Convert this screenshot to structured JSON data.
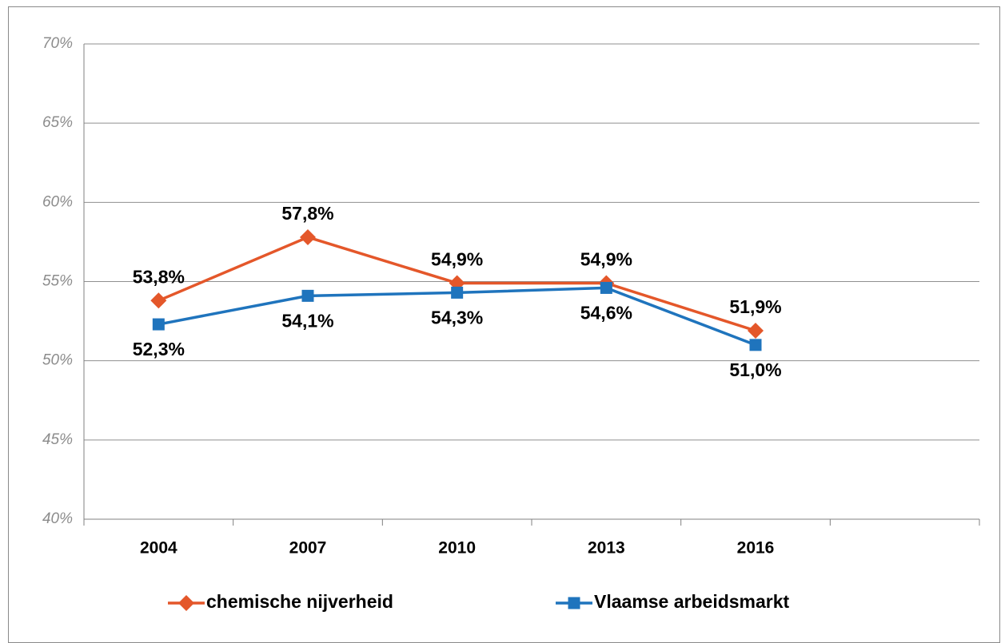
{
  "chart_data": {
    "type": "line",
    "categories": [
      "2004",
      "2007",
      "2010",
      "2013",
      "2016",
      null
    ],
    "series": [
      {
        "name": "chemische nijverheid",
        "color": "#e4572a",
        "marker": "diamond",
        "values": [
          53.8,
          57.8,
          54.9,
          54.9,
          51.9,
          null
        ],
        "value_labels": [
          "53,8%",
          "57,8%",
          "54,9%",
          "54,9%",
          "51,9%",
          null
        ]
      },
      {
        "name": "Vlaamse arbeidsmarkt",
        "color": "#1f74bd",
        "marker": "square",
        "values": [
          52.3,
          54.1,
          54.3,
          54.6,
          51.0,
          null
        ],
        "value_labels": [
          "52,3%",
          "54,1%",
          "54,3%",
          "54,6%",
          "51,0%",
          null
        ]
      }
    ],
    "ylim": [
      40,
      70
    ],
    "yticks": [
      {
        "value": 40,
        "label": "40%"
      },
      {
        "value": 45,
        "label": "45%"
      },
      {
        "value": 50,
        "label": "50%"
      },
      {
        "value": 55,
        "label": "55%"
      },
      {
        "value": 60,
        "label": "60%"
      },
      {
        "value": 65,
        "label": "65%"
      },
      {
        "value": 70,
        "label": "70%"
      }
    ],
    "grid": true,
    "legend": "bottom"
  }
}
